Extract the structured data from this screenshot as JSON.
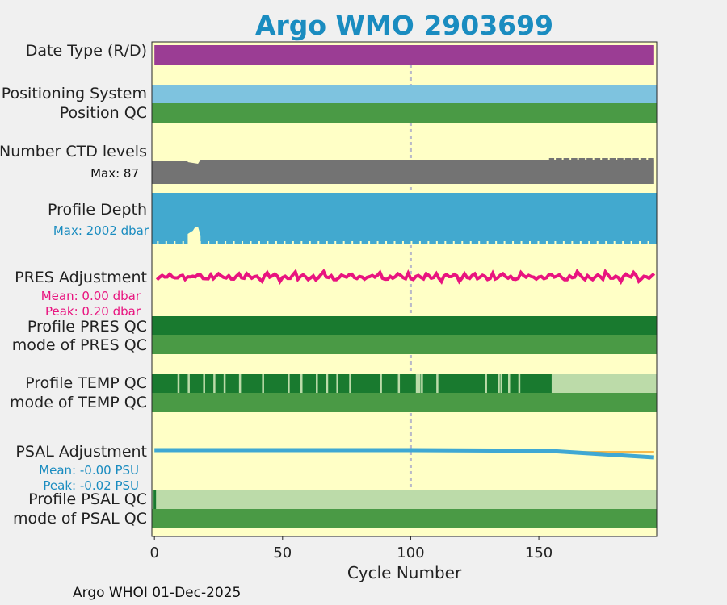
{
  "title": "Argo WMO 2903699",
  "footer": "Argo WHOI 01-Dec-2025",
  "chart_data": {
    "type": "bar",
    "xlabel": "Cycle Number",
    "xlim": [
      -1,
      196
    ],
    "xticks": [
      "0",
      "50",
      "100",
      "150"
    ],
    "grid": false,
    "tracks": [
      {
        "label": "Date Type (R/D)",
        "color": "#9b3d94"
      },
      {
        "label": "Positioning System",
        "color": "#7ec3df"
      },
      {
        "label": "Position QC",
        "color": "#4a9a45"
      },
      {
        "label": "Number CTD levels",
        "color": "#737373",
        "note": "Max: 87"
      },
      {
        "label": "Profile Depth",
        "color": "#42a9cf",
        "note": "Max: 2002 dbar"
      },
      {
        "label": "PRES Adjustment",
        "color": "#e8147f",
        "mean": "Mean: 0.00 dbar",
        "peak": "Peak: 0.20 dbar"
      },
      {
        "label": "Profile PRES QC",
        "color": "#197a2f"
      },
      {
        "label": "mode of PRES QC",
        "color": "#4a9a45"
      },
      {
        "label": "Profile TEMP QC",
        "color": "#197a2f"
      },
      {
        "label": "mode of TEMP QC",
        "color": "#4a9a45"
      },
      {
        "label": "PSAL Adjustment",
        "color": "#3fa8d3",
        "mean": "Mean: -0.00 PSU",
        "peak": "Peak: -0.02 PSU"
      },
      {
        "label": "Profile PSAL QC",
        "color": "#bcdba9"
      },
      {
        "label": "mode of PSAL QC",
        "color": "#4a9a45"
      }
    ],
    "temp_qc_light_cycles": [
      9,
      13,
      19,
      23,
      27,
      33,
      42,
      52,
      57,
      63,
      67,
      71,
      76,
      88,
      95,
      102,
      103,
      104,
      110,
      129,
      134,
      135,
      138,
      142
    ],
    "temp_qc_light_from": 155,
    "psal_adjustment": {
      "x": [
        0,
        30,
        100,
        154,
        195
      ],
      "y": [
        0.0,
        0.0,
        0.0,
        -0.002,
        -0.02
      ]
    },
    "psal_qc_dark_cycle": 0,
    "highlight_cycle": 100
  }
}
